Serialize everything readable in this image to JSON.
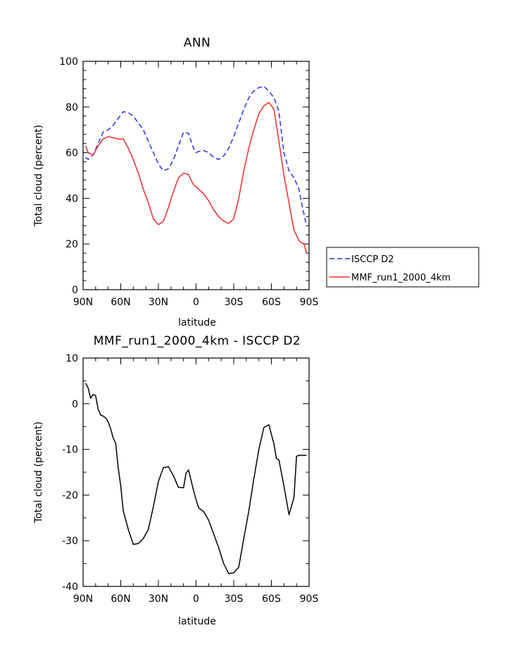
{
  "chart_data": [
    {
      "type": "line",
      "title": "ANN",
      "xlabel": "latitude",
      "ylabel": "Total cloud (percent)",
      "xlim": [
        90,
        -90
      ],
      "ylim": [
        0,
        100
      ],
      "xticks": [
        {
          "value": 90,
          "label": "90N"
        },
        {
          "value": 60,
          "label": "60N"
        },
        {
          "value": 30,
          "label": "30N"
        },
        {
          "value": 0,
          "label": "0"
        },
        {
          "value": -30,
          "label": "30S"
        },
        {
          "value": -60,
          "label": "60S"
        },
        {
          "value": -90,
          "label": "90S"
        }
      ],
      "yticks": [
        0,
        20,
        40,
        60,
        80,
        100
      ],
      "legend": {
        "position": "right"
      },
      "series": [
        {
          "name": "ISCCP D2",
          "color": "#2d2df0",
          "dash": "dashed",
          "x": [
            88,
            86,
            82,
            78,
            74,
            70,
            66,
            62,
            58,
            54,
            50,
            46,
            42,
            38,
            34,
            30,
            26,
            22,
            18,
            14,
            10,
            6,
            4,
            2,
            0,
            -2,
            -6,
            -10,
            -14,
            -18,
            -22,
            -26,
            -30,
            -34,
            -38,
            -42,
            -46,
            -50,
            -54,
            -58,
            -62,
            -66,
            -70,
            -74,
            -78,
            -82,
            -84,
            -86,
            -88
          ],
          "y": [
            58,
            57,
            59,
            64,
            69,
            70,
            72,
            75,
            78,
            77.5,
            76,
            73,
            70,
            65,
            60,
            55,
            52,
            53,
            57,
            63,
            69,
            68.5,
            65,
            62,
            60,
            60.5,
            61,
            60,
            58,
            57,
            58.5,
            62,
            67,
            73,
            79,
            84,
            87,
            88.5,
            89,
            87,
            84,
            78,
            60,
            52,
            49,
            44,
            38,
            33,
            28
          ]
        },
        {
          "name": "MMF_run1_2000_4km",
          "color": "#ef2d2d",
          "dash": "solid",
          "x": [
            88,
            86,
            82,
            78,
            74,
            70,
            66,
            62,
            58,
            54,
            50,
            46,
            42,
            38,
            34,
            30,
            26,
            22,
            18,
            14,
            10,
            6,
            4,
            2,
            0,
            -2,
            -6,
            -10,
            -14,
            -18,
            -22,
            -26,
            -30,
            -34,
            -38,
            -42,
            -46,
            -50,
            -54,
            -58,
            -62,
            -66,
            -70,
            -74,
            -78,
            -82,
            -84,
            -86,
            -88
          ],
          "y": [
            63,
            60,
            59,
            63,
            66,
            67,
            66.5,
            66,
            66,
            62,
            57,
            51,
            44,
            38,
            31,
            28.5,
            30,
            36,
            43,
            49,
            51,
            50.5,
            48,
            46,
            45,
            44,
            42,
            39,
            35,
            32,
            30,
            29,
            31,
            40,
            52,
            62,
            70,
            77,
            80.5,
            82,
            79,
            65,
            50,
            38,
            26,
            21.5,
            20.5,
            20,
            16
          ]
        }
      ]
    },
    {
      "type": "line",
      "title": "MMF_run1_2000_4km - ISCCP D2",
      "xlabel": "latitude",
      "ylabel": "Total cloud (percent)",
      "xlim": [
        90,
        -90
      ],
      "ylim": [
        -40,
        10
      ],
      "xticks": [
        {
          "value": 90,
          "label": "90N"
        },
        {
          "value": 60,
          "label": "60N"
        },
        {
          "value": 30,
          "label": "30N"
        },
        {
          "value": 0,
          "label": "0"
        },
        {
          "value": -30,
          "label": "30S"
        },
        {
          "value": -60,
          "label": "60S"
        },
        {
          "value": -90,
          "label": "90S"
        }
      ],
      "yticks": [
        -40,
        -30,
        -20,
        -10,
        0,
        10
      ],
      "series": [
        {
          "color": "#000000",
          "x": [
            88,
            86,
            84,
            82,
            80,
            78,
            76,
            74,
            72,
            70,
            68,
            66,
            64,
            62,
            60,
            58,
            54,
            50,
            46,
            42,
            38,
            34,
            30,
            26,
            22,
            18,
            14,
            10,
            8,
            6,
            4,
            2,
            0,
            -2,
            -6,
            -10,
            -14,
            -18,
            -22,
            -26,
            -30,
            -34,
            -38,
            -42,
            -46,
            -50,
            -54,
            -58,
            -62,
            -64,
            -66,
            -70,
            -74,
            -78,
            -80,
            -82,
            -84,
            -86,
            -88
          ],
          "y": [
            4.5,
            3.5,
            1.2,
            2.0,
            1.8,
            -1.2,
            -2.5,
            -2.7,
            -3.1,
            -4.0,
            -5.5,
            -7.5,
            -8.7,
            -14.0,
            -18.0,
            -23.5,
            -27.5,
            -30.8,
            -30.6,
            -29.5,
            -27.5,
            -22.5,
            -17.0,
            -14.0,
            -13.8,
            -15.8,
            -18.3,
            -18.4,
            -15.2,
            -14.5,
            -16.8,
            -19.0,
            -21.0,
            -22.8,
            -23.6,
            -25.5,
            -28.5,
            -31.5,
            -35.0,
            -37.2,
            -37.0,
            -35.8,
            -29.5,
            -23.5,
            -16.5,
            -10.0,
            -5.2,
            -4.6,
            -8.8,
            -12.0,
            -12.3,
            -18.0,
            -24.3,
            -20.5,
            -11.5,
            -11.3,
            -11.3,
            -11.3,
            -11.3
          ]
        }
      ]
    }
  ]
}
